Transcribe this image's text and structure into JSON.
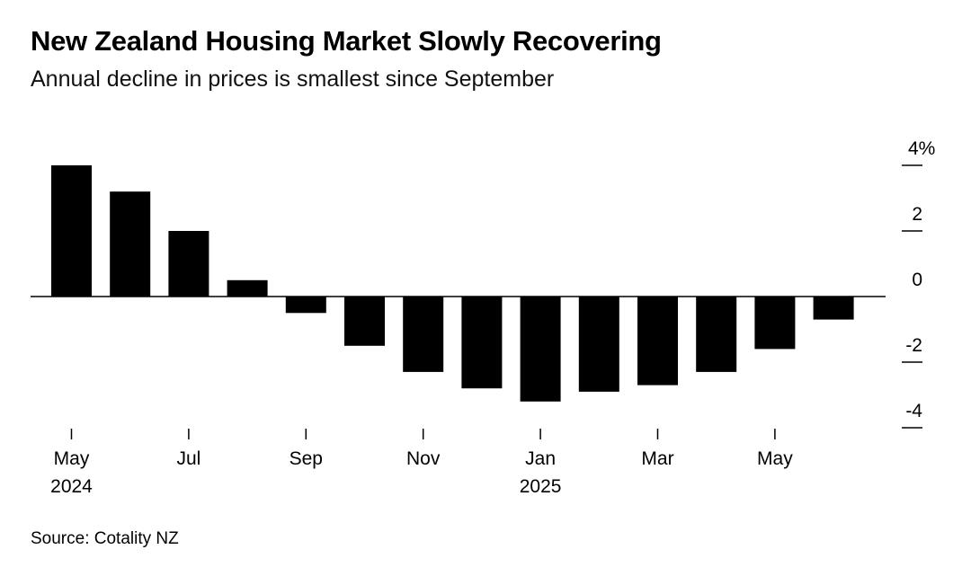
{
  "title": "New Zealand Housing Market Slowly Recovering",
  "subtitle": "Annual decline in prices is smallest since September",
  "source": "Source: Cotality NZ",
  "chart_data": {
    "type": "bar",
    "categories": [
      "May 2024",
      "Jun 2024",
      "Jul 2024",
      "Aug 2024",
      "Sep 2024",
      "Oct 2024",
      "Nov 2024",
      "Dec 2024",
      "Jan 2025",
      "Feb 2025",
      "Mar 2025",
      "Apr 2025",
      "May 2025",
      "Jun 2025"
    ],
    "values": [
      4.0,
      3.2,
      2.0,
      0.5,
      -0.5,
      -1.5,
      -2.3,
      -2.8,
      -3.2,
      -2.9,
      -2.7,
      -2.3,
      -1.6,
      -0.7
    ],
    "ylim": [
      -4,
      4
    ],
    "yticks": [
      {
        "value": 4,
        "label": "4%"
      },
      {
        "value": 2,
        "label": "2"
      },
      {
        "value": 0,
        "label": "0"
      },
      {
        "value": -2,
        "label": "-2"
      },
      {
        "value": -4,
        "label": "-4"
      }
    ],
    "xticks": [
      {
        "index": 0,
        "label": "May",
        "sublabel": "2024"
      },
      {
        "index": 2,
        "label": "Jul",
        "sublabel": ""
      },
      {
        "index": 4,
        "label": "Sep",
        "sublabel": ""
      },
      {
        "index": 6,
        "label": "Nov",
        "sublabel": ""
      },
      {
        "index": 8,
        "label": "Jan",
        "sublabel": "2025"
      },
      {
        "index": 10,
        "label": "Mar",
        "sublabel": ""
      },
      {
        "index": 12,
        "label": "May",
        "sublabel": ""
      }
    ],
    "bar_color": "#000000",
    "grid": false,
    "y_axis_side": "right"
  }
}
